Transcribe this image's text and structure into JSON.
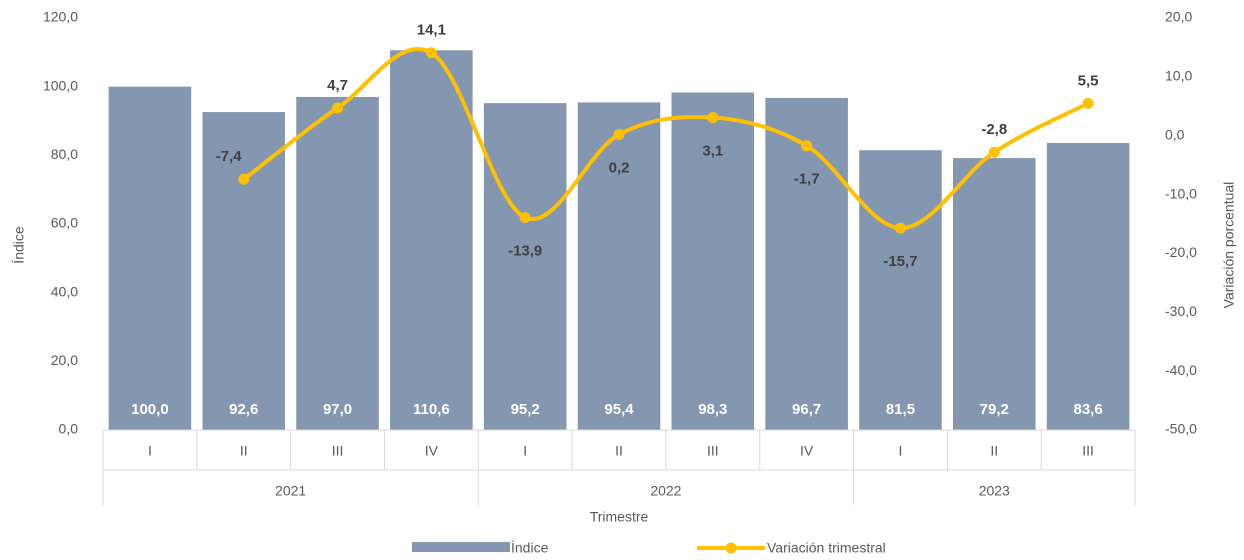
{
  "chart_data": {
    "type": "bar_line",
    "x_label": "Trimestre",
    "y_label": "Índice",
    "y2_label": "Variación porcentual",
    "categories": [
      "I",
      "II",
      "III",
      "IV",
      "I",
      "II",
      "III",
      "IV",
      "I",
      "II",
      "III"
    ],
    "groups": [
      {
        "label": "2021",
        "span": 4
      },
      {
        "label": "2022",
        "span": 4
      },
      {
        "label": "2023",
        "span": 3
      }
    ],
    "series": [
      {
        "name": "Índice",
        "type": "bar",
        "color": "#8497b0",
        "values": [
          100.0,
          92.6,
          97.0,
          110.6,
          95.2,
          95.4,
          98.3,
          96.7,
          81.5,
          79.2,
          83.6
        ],
        "value_labels": [
          "100,0",
          "92,6",
          "97,0",
          "110,6",
          "95,2",
          "95,4",
          "98,3",
          "96,7",
          "81,5",
          "79,2",
          "83,6"
        ]
      },
      {
        "name": "Variación trimestral",
        "type": "line",
        "axis": "y2",
        "color": "#ffc000",
        "values": [
          null,
          -7.4,
          4.7,
          14.1,
          -13.9,
          0.2,
          3.1,
          -1.7,
          -15.7,
          -2.8,
          5.5
        ],
        "value_labels": [
          null,
          "-7,4",
          "4,7",
          "14,1",
          "-13,9",
          "0,2",
          "3,1",
          "-1,7",
          "-15,7",
          "-2,8",
          "5,5"
        ]
      }
    ],
    "ylim": [
      0,
      120
    ],
    "yticks": [
      {
        "value": 0,
        "label": "0,0"
      },
      {
        "value": 20,
        "label": "20,0"
      },
      {
        "value": 40,
        "label": "40,0"
      },
      {
        "value": 60,
        "label": "60,0"
      },
      {
        "value": 80,
        "label": "80,0"
      },
      {
        "value": 100,
        "label": "100,0"
      },
      {
        "value": 120,
        "label": "120,0"
      }
    ],
    "y2lim": [
      -50,
      20
    ],
    "y2ticks": [
      {
        "value": -50,
        "label": "-50,0"
      },
      {
        "value": -40,
        "label": "-40,0"
      },
      {
        "value": -30,
        "label": "-30,0"
      },
      {
        "value": -20,
        "label": "-20,0"
      },
      {
        "value": -10,
        "label": "-10,0"
      },
      {
        "value": 0,
        "label": "0,0"
      },
      {
        "value": 10,
        "label": "10,0"
      },
      {
        "value": 20,
        "label": "20,0"
      }
    ],
    "legend": "bottom"
  }
}
